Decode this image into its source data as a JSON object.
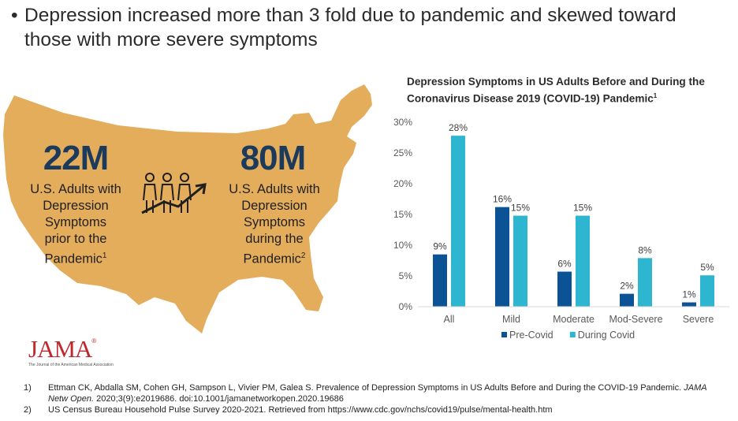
{
  "headline": {
    "bullet": "•",
    "text": "Depression increased more than 3 fold due to pandemic and skewed toward those with more severe symptoms"
  },
  "map_panel": {
    "map_color": "#e4ad5c",
    "left_stat": {
      "number": "22M",
      "lines": [
        "U.S. Adults with",
        "Depression",
        "Symptoms",
        "prior to the"
      ],
      "last_line": "Pandemic",
      "footnote_ref": "1"
    },
    "right_stat": {
      "number": "80M",
      "lines": [
        "U.S. Adults with",
        "Depression",
        "Symptoms",
        "during the"
      ],
      "last_line": "Pandemic",
      "footnote_ref": "2"
    },
    "icon": "people-growth-arrow-icon"
  },
  "logo": {
    "word": "JAMA",
    "mark": "®",
    "subtitle": "The Journal of the American Medical Association"
  },
  "chart_data": {
    "type": "bar",
    "title": "Depression Symptoms in US Adults Before and During the Coronavirus Disease 2019 (COVID-19) Pandemic",
    "title_ref": "1",
    "categories": [
      "All",
      "Mild",
      "Moderate",
      "Mod-Severe",
      "Severe"
    ],
    "series": [
      {
        "name": "Pre-Covid",
        "color": "#0b5394",
        "values": [
          8.5,
          16.2,
          5.7,
          2.1,
          0.7
        ],
        "labels": [
          "9%",
          "16%",
          "6%",
          "2%",
          "1%"
        ]
      },
      {
        "name": "During Covid",
        "color": "#2eb5d0",
        "values": [
          27.8,
          14.8,
          14.8,
          7.9,
          5.1
        ],
        "labels": [
          "28%",
          "15%",
          "15%",
          "8%",
          "5%"
        ]
      }
    ],
    "yticks": [
      "0%",
      "5%",
      "10%",
      "15%",
      "20%",
      "25%",
      "30%"
    ],
    "ylim": [
      0,
      30
    ],
    "grid": false,
    "legend_position": "bottom"
  },
  "footnotes": [
    {
      "num": "1)",
      "before": "Ettman CK, Abdalla SM, Cohen GH, Sampson L, Vivier PM, Galea S. Prevalence of Depression Symptoms in US Adults Before and During the COVID-19 Pandemic. ",
      "journal": "JAMA Netw Open.",
      "after": " 2020;3(9):e2019686. doi:10.1001/jamanetworkopen.2020.19686"
    },
    {
      "num": "2)",
      "text": "US Census Bureau Household Pulse Survey 2020-2021. Retrieved from https://www.cdc.gov/nchs/covid19/pulse/mental-health.htm"
    }
  ]
}
